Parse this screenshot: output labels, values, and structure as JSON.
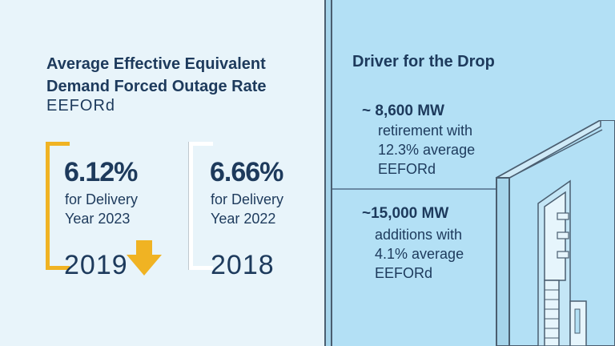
{
  "left": {
    "title_line1": "Average Effective Equivalent",
    "title_line2": "Demand Forced Outage Rate",
    "subtitle": "EEFORd",
    "cards": [
      {
        "percent": "6.12%",
        "desc_line1": "for Delivery",
        "desc_line2": "Year 2023",
        "year": "2019",
        "accent": "#f0b323"
      },
      {
        "percent": "6.66%",
        "desc_line1": "for Delivery",
        "desc_line2": "Year 2022",
        "year": "2018",
        "accent": "#ffffff"
      }
    ],
    "arrow_icon": "down-arrow-icon",
    "arrow_color": "#f0b323"
  },
  "right": {
    "title": "Driver for the Drop",
    "items": [
      {
        "head": "~ 8,600 MW",
        "line1": "retirement with",
        "line2": "12.3% average",
        "line3": "EEFORd"
      },
      {
        "head": "~15,000 MW",
        "line1": "additions with",
        "line2": "4.1% average",
        "line3": "EEFORd"
      }
    ],
    "background": "#b3e0f5"
  }
}
